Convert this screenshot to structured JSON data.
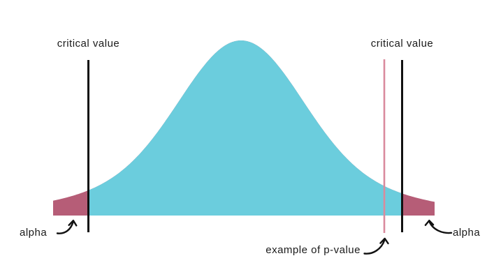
{
  "figure": {
    "kind": "normal-distribution-significance-diagram"
  },
  "labels": {
    "critical_value_left": "critical value",
    "critical_value_right": "critical value",
    "alpha_left": "alpha",
    "alpha_right": "alpha",
    "p_value_example": "example of p-value"
  },
  "colors": {
    "distribution_fill": "#6bcddd",
    "alpha_region_fill": "#b65d77",
    "p_value_line": "#d98b9d",
    "critical_value_line": "#111111",
    "arrow_ink": "#111111",
    "label_text": "#1a1a1a",
    "background": "#ffffff"
  }
}
